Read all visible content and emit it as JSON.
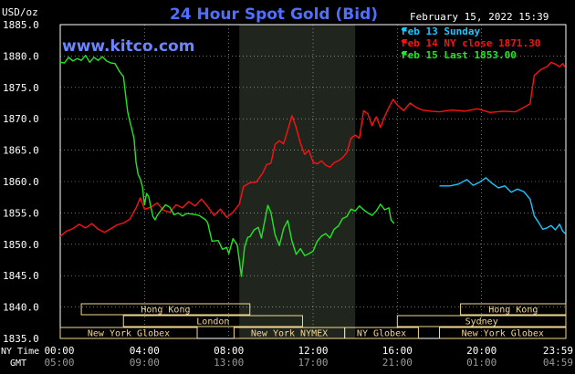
{
  "header": {
    "title": "24 Hour Spot Gold (Bid)",
    "timestamp": "February 15, 2022 15:39",
    "watermark": "www.kitco.com",
    "y_unit": "USD/oz"
  },
  "colors": {
    "background": "#000000",
    "title": "#4f6fff",
    "watermark": "#6b86ff",
    "grid": "#ffffff",
    "shade": "#20261e",
    "market_box": "#f2d890",
    "text": "#ffffff",
    "feb13": "#16c8ff",
    "feb14": "#ff1010",
    "feb15": "#22e622"
  },
  "legend": [
    {
      "label": "Feb 13 Sunday",
      "color": "#16c8ff"
    },
    {
      "label": "Feb 14 NY close 1871.30",
      "color": "#ff1010"
    },
    {
      "label": "Feb 15 Last 1853.00",
      "color": "#22e622"
    }
  ],
  "footer": {
    "ny_time_label": "NY Time",
    "gmt_label": "GMT",
    "gmt_ticks": [
      "05:00",
      "09:00",
      "13:00",
      "17:00",
      "21:00",
      "01:00",
      "04:59"
    ]
  },
  "markets": [
    {
      "name": "Hong Kong",
      "start": 1.0,
      "end": 9.0,
      "row": 0
    },
    {
      "name": "Hong Kong",
      "start": 19.0,
      "end": 24.0,
      "row": 0
    },
    {
      "name": "London",
      "start": 3.0,
      "end": 11.5,
      "row": 1
    },
    {
      "name": "Sydney",
      "start": 16.0,
      "end": 24.0,
      "row": 1
    },
    {
      "name": "New York Globex",
      "start": 0.0,
      "end": 6.5,
      "row": 2
    },
    {
      "name": "New York NYMEX",
      "start": 8.25,
      "end": 13.5,
      "row": 2
    },
    {
      "name": "NY Globex",
      "start": 13.5,
      "end": 17.0,
      "row": 2
    },
    {
      "name": "New York Globex",
      "start": 18.0,
      "end": 24.0,
      "row": 2
    }
  ],
  "chart_data": {
    "type": "line",
    "title": "24 Hour Spot Gold (Bid)",
    "ylabel": "USD/oz",
    "xlim": [
      0,
      24
    ],
    "ylim": [
      1835,
      1885
    ],
    "x_ticks": [
      "00:00",
      "04:00",
      "08:00",
      "12:00",
      "16:00",
      "20:00",
      "23:59"
    ],
    "x_tick_values": [
      0,
      4,
      8,
      12,
      16,
      20,
      23.98
    ],
    "y_ticks": [
      "1885.0",
      "1880.0",
      "1875.0",
      "1870.0",
      "1865.0",
      "1860.0",
      "1855.0",
      "1850.0",
      "1845.0",
      "1840.0",
      "1835.0"
    ],
    "y_tick_values": [
      1885,
      1880,
      1875,
      1870,
      1865,
      1860,
      1855,
      1850,
      1845,
      1840,
      1835
    ],
    "shaded_x": [
      8.5,
      14.0
    ],
    "grid": true,
    "legend_position": "top-right",
    "series": [
      {
        "name": "Feb 13 Sunday",
        "color": "#16c8ff",
        "points": [
          [
            18.0,
            1859.3
          ],
          [
            18.5,
            1859.3
          ],
          [
            18.9,
            1859.6
          ],
          [
            19.3,
            1860.3
          ],
          [
            19.6,
            1859.4
          ],
          [
            19.9,
            1859.9
          ],
          [
            20.2,
            1860.6
          ],
          [
            20.5,
            1859.7
          ],
          [
            20.8,
            1859.0
          ],
          [
            21.1,
            1859.3
          ],
          [
            21.4,
            1858.3
          ],
          [
            21.7,
            1858.8
          ],
          [
            22.0,
            1858.4
          ],
          [
            22.3,
            1857.2
          ],
          [
            22.5,
            1854.5
          ],
          [
            22.7,
            1853.5
          ],
          [
            22.9,
            1852.4
          ],
          [
            23.1,
            1852.6
          ],
          [
            23.3,
            1853.0
          ],
          [
            23.5,
            1852.3
          ],
          [
            23.7,
            1853.2
          ],
          [
            23.85,
            1852.1
          ],
          [
            23.98,
            1851.7
          ]
        ]
      },
      {
        "name": "Feb 14 NY close 1871.30",
        "color": "#ff1010",
        "points": [
          [
            0.0,
            1851.3
          ],
          [
            0.3,
            1852.1
          ],
          [
            0.6,
            1852.5
          ],
          [
            0.9,
            1853.2
          ],
          [
            1.2,
            1852.6
          ],
          [
            1.5,
            1853.3
          ],
          [
            1.8,
            1852.4
          ],
          [
            2.1,
            1851.9
          ],
          [
            2.4,
            1852.5
          ],
          [
            2.7,
            1853.1
          ],
          [
            3.0,
            1853.4
          ],
          [
            3.3,
            1854.0
          ],
          [
            3.6,
            1855.8
          ],
          [
            3.8,
            1857.4
          ],
          [
            4.0,
            1855.6
          ],
          [
            4.3,
            1855.9
          ],
          [
            4.6,
            1856.6
          ],
          [
            4.9,
            1855.4
          ],
          [
            5.2,
            1855.1
          ],
          [
            5.5,
            1856.3
          ],
          [
            5.8,
            1855.8
          ],
          [
            6.1,
            1856.8
          ],
          [
            6.4,
            1856.1
          ],
          [
            6.7,
            1857.2
          ],
          [
            7.0,
            1856.0
          ],
          [
            7.3,
            1854.6
          ],
          [
            7.6,
            1855.6
          ],
          [
            7.9,
            1854.3
          ],
          [
            8.2,
            1855.1
          ],
          [
            8.5,
            1856.4
          ],
          [
            8.7,
            1859.2
          ],
          [
            9.0,
            1859.8
          ],
          [
            9.3,
            1859.9
          ],
          [
            9.6,
            1861.3
          ],
          [
            9.8,
            1862.7
          ],
          [
            10.0,
            1862.9
          ],
          [
            10.2,
            1865.9
          ],
          [
            10.4,
            1866.5
          ],
          [
            10.6,
            1866.0
          ],
          [
            10.8,
            1868.2
          ],
          [
            11.0,
            1870.5
          ],
          [
            11.2,
            1868.6
          ],
          [
            11.4,
            1866.1
          ],
          [
            11.6,
            1864.3
          ],
          [
            11.8,
            1865.0
          ],
          [
            12.0,
            1863.1
          ],
          [
            12.2,
            1862.8
          ],
          [
            12.4,
            1863.3
          ],
          [
            12.6,
            1862.6
          ],
          [
            12.8,
            1862.3
          ],
          [
            13.0,
            1863.0
          ],
          [
            13.2,
            1863.3
          ],
          [
            13.4,
            1863.8
          ],
          [
            13.6,
            1864.6
          ],
          [
            13.8,
            1866.9
          ],
          [
            14.0,
            1867.4
          ],
          [
            14.2,
            1866.9
          ],
          [
            14.4,
            1871.3
          ],
          [
            14.6,
            1870.8
          ],
          [
            14.8,
            1868.9
          ],
          [
            15.0,
            1870.3
          ],
          [
            15.2,
            1868.6
          ],
          [
            15.4,
            1870.4
          ],
          [
            15.6,
            1871.8
          ],
          [
            15.8,
            1873.1
          ],
          [
            16.0,
            1872.2
          ],
          [
            16.3,
            1871.3
          ],
          [
            16.6,
            1872.5
          ],
          [
            16.9,
            1871.8
          ],
          [
            17.2,
            1871.4
          ],
          [
            17.6,
            1871.2
          ],
          [
            18.0,
            1871.1
          ],
          [
            18.6,
            1871.4
          ],
          [
            19.2,
            1871.2
          ],
          [
            19.8,
            1871.6
          ],
          [
            20.4,
            1871.0
          ],
          [
            21.0,
            1871.2
          ],
          [
            21.6,
            1871.1
          ],
          [
            22.0,
            1871.8
          ],
          [
            22.3,
            1872.4
          ],
          [
            22.5,
            1876.9
          ],
          [
            22.8,
            1877.8
          ],
          [
            23.1,
            1878.3
          ],
          [
            23.3,
            1879.0
          ],
          [
            23.5,
            1878.7
          ],
          [
            23.7,
            1878.3
          ],
          [
            23.85,
            1878.8
          ],
          [
            23.98,
            1878.2
          ]
        ]
      },
      {
        "name": "Feb 15 Last 1853.00",
        "color": "#22e622",
        "points": [
          [
            0.0,
            1879.0
          ],
          [
            0.2,
            1878.9
          ],
          [
            0.4,
            1879.8
          ],
          [
            0.6,
            1879.2
          ],
          [
            0.8,
            1879.6
          ],
          [
            1.0,
            1879.3
          ],
          [
            1.2,
            1880.1
          ],
          [
            1.4,
            1879.0
          ],
          [
            1.6,
            1879.8
          ],
          [
            1.8,
            1879.3
          ],
          [
            2.0,
            1879.9
          ],
          [
            2.2,
            1879.2
          ],
          [
            2.4,
            1878.9
          ],
          [
            2.6,
            1878.8
          ],
          [
            2.8,
            1877.6
          ],
          [
            3.0,
            1876.7
          ],
          [
            3.1,
            1873.8
          ],
          [
            3.2,
            1871.1
          ],
          [
            3.3,
            1869.6
          ],
          [
            3.4,
            1868.3
          ],
          [
            3.5,
            1866.9
          ],
          [
            3.6,
            1863.0
          ],
          [
            3.7,
            1861.1
          ],
          [
            3.8,
            1860.4
          ],
          [
            3.9,
            1859.2
          ],
          [
            4.0,
            1856.3
          ],
          [
            4.1,
            1858.1
          ],
          [
            4.2,
            1857.6
          ],
          [
            4.3,
            1855.9
          ],
          [
            4.4,
            1854.4
          ],
          [
            4.5,
            1853.9
          ],
          [
            4.6,
            1854.6
          ],
          [
            4.8,
            1855.5
          ],
          [
            5.0,
            1856.3
          ],
          [
            5.2,
            1855.9
          ],
          [
            5.4,
            1854.7
          ],
          [
            5.6,
            1855.0
          ],
          [
            5.8,
            1854.5
          ],
          [
            6.0,
            1854.9
          ],
          [
            6.3,
            1854.8
          ],
          [
            6.6,
            1854.6
          ],
          [
            6.9,
            1853.9
          ],
          [
            7.0,
            1853.4
          ],
          [
            7.2,
            1850.5
          ],
          [
            7.5,
            1850.6
          ],
          [
            7.7,
            1849.2
          ],
          [
            7.9,
            1849.5
          ],
          [
            8.0,
            1848.5
          ],
          [
            8.2,
            1850.9
          ],
          [
            8.4,
            1849.9
          ],
          [
            8.5,
            1847.4
          ],
          [
            8.6,
            1844.9
          ],
          [
            8.75,
            1849.6
          ],
          [
            8.9,
            1851.1
          ],
          [
            9.0,
            1851.2
          ],
          [
            9.2,
            1852.3
          ],
          [
            9.4,
            1852.7
          ],
          [
            9.55,
            1851.0
          ],
          [
            9.7,
            1853.6
          ],
          [
            9.85,
            1856.2
          ],
          [
            10.0,
            1855.1
          ],
          [
            10.2,
            1851.5
          ],
          [
            10.4,
            1849.8
          ],
          [
            10.6,
            1852.5
          ],
          [
            10.8,
            1853.8
          ],
          [
            11.0,
            1850.5
          ],
          [
            11.2,
            1848.4
          ],
          [
            11.4,
            1849.3
          ],
          [
            11.6,
            1848.2
          ],
          [
            11.8,
            1848.5
          ],
          [
            12.0,
            1848.9
          ],
          [
            12.2,
            1850.5
          ],
          [
            12.4,
            1851.3
          ],
          [
            12.6,
            1851.7
          ],
          [
            12.8,
            1851.0
          ],
          [
            13.0,
            1852.4
          ],
          [
            13.2,
            1852.9
          ],
          [
            13.4,
            1854.1
          ],
          [
            13.6,
            1854.4
          ],
          [
            13.8,
            1855.6
          ],
          [
            14.0,
            1855.3
          ],
          [
            14.2,
            1856.1
          ],
          [
            14.4,
            1855.5
          ],
          [
            14.6,
            1855.0
          ],
          [
            14.8,
            1854.6
          ],
          [
            15.0,
            1855.3
          ],
          [
            15.2,
            1856.4
          ],
          [
            15.4,
            1855.5
          ],
          [
            15.6,
            1855.8
          ],
          [
            15.7,
            1853.9
          ],
          [
            15.85,
            1853.3
          ]
        ]
      }
    ]
  }
}
